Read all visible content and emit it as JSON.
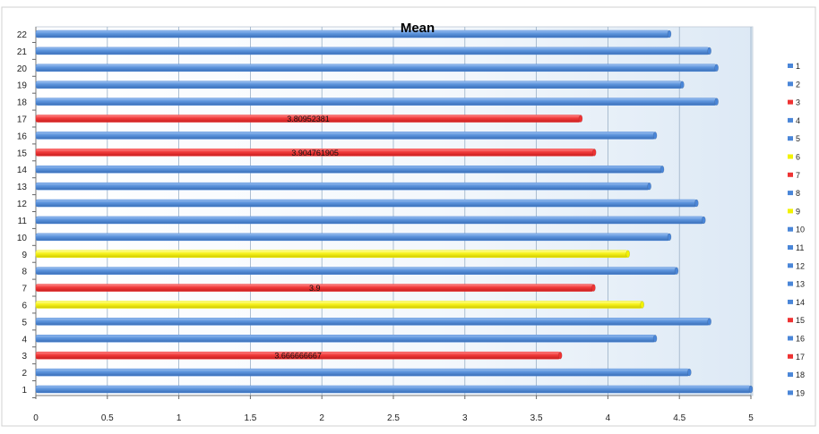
{
  "chart_data": {
    "type": "bar",
    "orientation": "horizontal",
    "title": "Mean",
    "xlabel": "",
    "ylabel": "",
    "xlim": [
      0,
      5
    ],
    "x_ticks": [
      "0",
      "0.5",
      "1",
      "1.5",
      "2",
      "2.5",
      "3",
      "3.5",
      "4",
      "4.5",
      "5"
    ],
    "grid": "vertical",
    "legend_position": "right",
    "colors": {
      "blue": "#4a86d8",
      "red": "#ee3333",
      "yellow": "#f2f200"
    },
    "categories": [
      "1",
      "2",
      "3",
      "4",
      "5",
      "6",
      "7",
      "8",
      "9",
      "10",
      "11",
      "12",
      "13",
      "14",
      "15",
      "16",
      "17",
      "18",
      "19",
      "20",
      "21",
      "22"
    ],
    "bars": [
      {
        "category": "1",
        "value": 5.0,
        "color": "blue",
        "label": ""
      },
      {
        "category": "2",
        "value": 4.57,
        "color": "blue",
        "label": ""
      },
      {
        "category": "3",
        "value": 3.666666667,
        "color": "red",
        "label": "3.666666667"
      },
      {
        "category": "4",
        "value": 4.33,
        "color": "blue",
        "label": ""
      },
      {
        "category": "5",
        "value": 4.71,
        "color": "blue",
        "label": ""
      },
      {
        "category": "6",
        "value": 4.24,
        "color": "yellow",
        "label": ""
      },
      {
        "category": "7",
        "value": 3.9,
        "color": "red",
        "label": "3.9"
      },
      {
        "category": "8",
        "value": 4.48,
        "color": "blue",
        "label": ""
      },
      {
        "category": "9",
        "value": 4.14,
        "color": "yellow",
        "label": ""
      },
      {
        "category": "10",
        "value": 4.43,
        "color": "blue",
        "label": ""
      },
      {
        "category": "11",
        "value": 4.67,
        "color": "blue",
        "label": ""
      },
      {
        "category": "12",
        "value": 4.62,
        "color": "blue",
        "label": ""
      },
      {
        "category": "13",
        "value": 4.29,
        "color": "blue",
        "label": ""
      },
      {
        "category": "14",
        "value": 4.38,
        "color": "blue",
        "label": ""
      },
      {
        "category": "15",
        "value": 3.904761905,
        "color": "red",
        "label": "3.904761905"
      },
      {
        "category": "16",
        "value": 4.33,
        "color": "blue",
        "label": ""
      },
      {
        "category": "17",
        "value": 3.80952381,
        "color": "red",
        "label": "3.80952381"
      },
      {
        "category": "18",
        "value": 4.76,
        "color": "blue",
        "label": ""
      },
      {
        "category": "19",
        "value": 4.52,
        "color": "blue",
        "label": ""
      },
      {
        "category": "20",
        "value": 4.76,
        "color": "blue",
        "label": ""
      },
      {
        "category": "21",
        "value": 4.71,
        "color": "blue",
        "label": ""
      },
      {
        "category": "22",
        "value": 4.43,
        "color": "blue",
        "label": ""
      }
    ],
    "legend": [
      {
        "name": "1",
        "color": "blue"
      },
      {
        "name": "2",
        "color": "blue"
      },
      {
        "name": "3",
        "color": "red"
      },
      {
        "name": "4",
        "color": "blue"
      },
      {
        "name": "5",
        "color": "blue"
      },
      {
        "name": "6",
        "color": "yellow"
      },
      {
        "name": "7",
        "color": "red"
      },
      {
        "name": "8",
        "color": "blue"
      },
      {
        "name": "9",
        "color": "yellow"
      },
      {
        "name": "10",
        "color": "blue"
      },
      {
        "name": "11",
        "color": "blue"
      },
      {
        "name": "12",
        "color": "blue"
      },
      {
        "name": "13",
        "color": "blue"
      },
      {
        "name": "14",
        "color": "blue"
      },
      {
        "name": "15",
        "color": "red"
      },
      {
        "name": "16",
        "color": "blue"
      },
      {
        "name": "17",
        "color": "red"
      },
      {
        "name": "18",
        "color": "blue"
      },
      {
        "name": "19",
        "color": "blue"
      }
    ]
  }
}
